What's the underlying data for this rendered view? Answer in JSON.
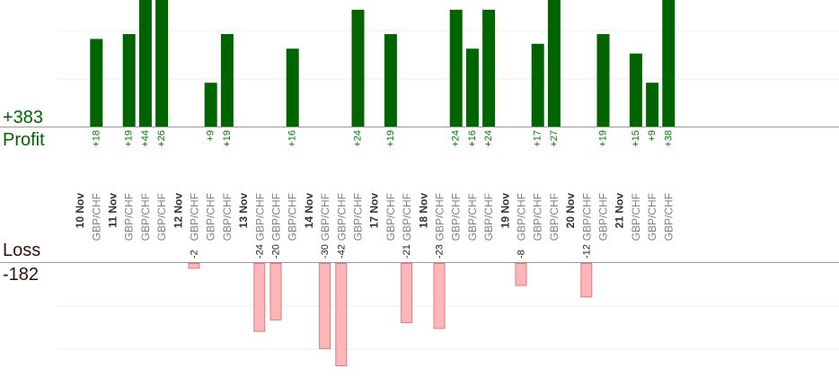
{
  "summary": {
    "profit_total": "+383",
    "profit_label": "Profit",
    "loss_label": "Loss",
    "loss_total": "-182"
  },
  "colors": {
    "profit": "#006400",
    "profit_label_text": "#008000",
    "loss_fill": "#ffb6b9",
    "loss_stroke": "#e07a80",
    "grid": "#ececec",
    "baseline": "#999999",
    "pair_text": "#808080",
    "date_text": "#333333"
  },
  "chart_data": {
    "type": "bar",
    "grid": true,
    "profit_ylim": [
      0,
      26
    ],
    "loss_ylim": [
      -36,
      0
    ],
    "days": [
      {
        "date": "10 Nov",
        "trades": [
          {
            "pair": "GBP/CHF",
            "profit": 18,
            "label": "+18"
          }
        ]
      },
      {
        "date": "11 Nov",
        "trades": [
          {
            "pair": "GBP/CHF",
            "profit": 19,
            "label": "+19"
          },
          {
            "pair": "GBP/CHF",
            "profit": 44,
            "label": "+44"
          },
          {
            "pair": "GBP/CHF",
            "profit": 26,
            "label": "+26"
          }
        ]
      },
      {
        "date": "12 Nov",
        "trades": [
          {
            "pair": "GBP/CHF",
            "loss": -2,
            "label": "-2"
          },
          {
            "pair": "GBP/CHF",
            "profit": 9,
            "label": "+9"
          },
          {
            "pair": "GBP/CHF",
            "profit": 19,
            "label": "+19"
          }
        ]
      },
      {
        "date": "13 Nov",
        "trades": [
          {
            "pair": "GBP/CHF",
            "loss": -24,
            "label": "-24"
          },
          {
            "pair": "GBP/CHF",
            "loss": -20,
            "label": "-20"
          },
          {
            "pair": "GBP/CHF",
            "profit": 16,
            "label": "+16"
          }
        ]
      },
      {
        "date": "14 Nov",
        "trades": [
          {
            "pair": "GBP/CHF",
            "loss": -30,
            "label": "-30"
          },
          {
            "pair": "GBP/CHF",
            "loss": -42,
            "label": "-42"
          },
          {
            "pair": "GBP/CHF",
            "profit": 24,
            "label": "+24"
          }
        ]
      },
      {
        "date": "17 Nov",
        "trades": [
          {
            "pair": "GBP/CHF",
            "profit": 19,
            "label": "+19"
          },
          {
            "pair": "GBP/CHF",
            "loss": -21,
            "label": "-21"
          }
        ]
      },
      {
        "date": "18 Nov",
        "trades": [
          {
            "pair": "GBP/CHF",
            "loss": -23,
            "label": "-23"
          },
          {
            "pair": "GBP/CHF",
            "profit": 24,
            "label": "+24"
          },
          {
            "pair": "GBP/CHF",
            "profit": 16,
            "label": "+16"
          },
          {
            "pair": "GBP/CHF",
            "profit": 24,
            "label": "+24"
          }
        ]
      },
      {
        "date": "19 Nov",
        "trades": [
          {
            "pair": "GBP/CHF",
            "loss": -8,
            "label": "-8"
          },
          {
            "pair": "GBP/CHF",
            "profit": 17,
            "label": "+17"
          },
          {
            "pair": "GBP/CHF",
            "profit": 27,
            "label": "+27"
          }
        ]
      },
      {
        "date": "20 Nov",
        "trades": [
          {
            "pair": "GBP/CHF",
            "loss": -12,
            "label": "-12"
          },
          {
            "pair": "GBP/CHF",
            "profit": 19,
            "label": "+19"
          }
        ]
      },
      {
        "date": "21 Nov",
        "trades": [
          {
            "pair": "GBP/CHF",
            "profit": 15,
            "label": "+15"
          },
          {
            "pair": "GBP/CHF",
            "profit": 9,
            "label": "+9"
          },
          {
            "pair": "GBP/CHF",
            "profit": 38,
            "label": "+38"
          }
        ]
      }
    ]
  }
}
